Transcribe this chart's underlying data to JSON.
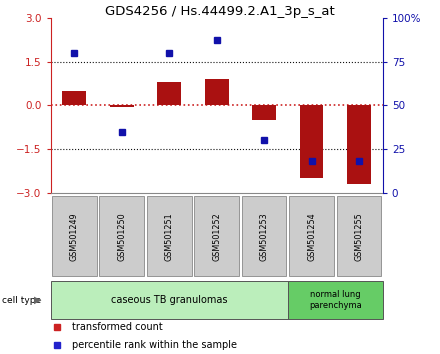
{
  "title": "GDS4256 / Hs.44499.2.A1_3p_s_at",
  "samples": [
    "GSM501249",
    "GSM501250",
    "GSM501251",
    "GSM501252",
    "GSM501253",
    "GSM501254",
    "GSM501255"
  ],
  "transformed_count": [
    0.5,
    -0.05,
    0.8,
    0.9,
    -0.5,
    -2.5,
    -2.7
  ],
  "percentile_rank": [
    80,
    35,
    80,
    87,
    30,
    18,
    18
  ],
  "ylim_left": [
    -3,
    3
  ],
  "ylim_right": [
    0,
    100
  ],
  "yticks_left": [
    -3,
    -1.5,
    0,
    1.5,
    3
  ],
  "yticks_right": [
    0,
    25,
    50,
    75,
    100
  ],
  "ytick_labels_right": [
    "0",
    "25",
    "50",
    "75",
    "100%"
  ],
  "bar_color": "#aa1111",
  "dot_color": "#1111aa",
  "bar_width": 0.5,
  "cell_type_groups": [
    {
      "label": "caseous TB granulomas",
      "n_samples": 5,
      "color": "#bbeebb"
    },
    {
      "label": "normal lung\nparenchyma",
      "n_samples": 2,
      "color": "#66cc66"
    }
  ],
  "cell_type_label": "cell type",
  "legend_bar_label": "transformed count",
  "legend_dot_label": "percentile rank within the sample",
  "bar_color_legend": "#cc2222",
  "dot_color_legend": "#2222cc",
  "background_plot": "#ffffff",
  "zero_line_color": "#cc2222",
  "dotted_line_color": "#111111",
  "spine_color": "#888888",
  "xtick_box_color": "#cccccc",
  "xtick_box_edge": "#888888"
}
